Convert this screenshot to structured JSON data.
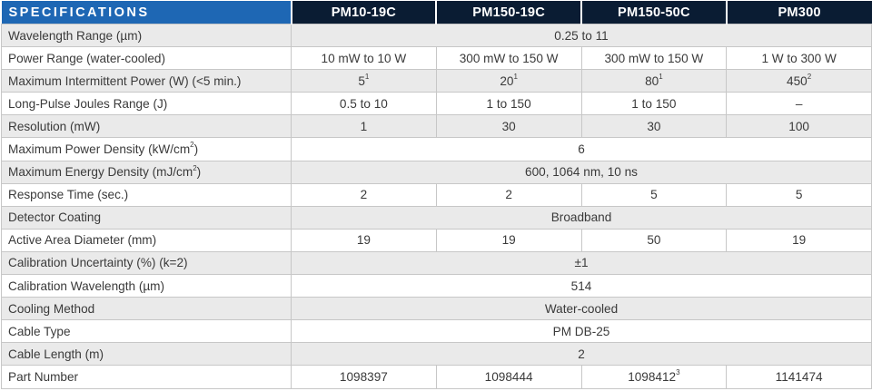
{
  "header": {
    "title": "SPECIFICATIONS",
    "models": [
      "PM10-19C",
      "PM150-19C",
      "PM150-50C",
      "PM300"
    ]
  },
  "rows": [
    {
      "label": "Wavelength Range (µm)",
      "span_value": "0.25 to 11"
    },
    {
      "label": "Power Range (water-cooled)",
      "values": [
        "10 mW to 10 W",
        "300 mW to 150 W",
        "300 mW to 150 W",
        "1 W to 300 W"
      ]
    },
    {
      "label": "Maximum Intermittent Power (W) (<5 min.)",
      "values": [
        "5",
        "20",
        "80",
        "450"
      ],
      "notes": [
        "1",
        "1",
        "1",
        "2"
      ]
    },
    {
      "label": "Long-Pulse Joules Range (J)",
      "values": [
        "0.5 to 10",
        "1 to 150",
        "1 to 150",
        "–"
      ]
    },
    {
      "label": "Resolution (mW)",
      "values": [
        "1",
        "30",
        "30",
        "100"
      ]
    },
    {
      "label": "Maximum Power Density (kW/cm",
      "label_sup": "2",
      "label_end": ")",
      "span_value": "6"
    },
    {
      "label": "Maximum Energy Density (mJ/cm",
      "label_sup": "2",
      "label_end": ")",
      "span_value": "600, 1064 nm, 10 ns"
    },
    {
      "label": "Response Time (sec.)",
      "values": [
        "2",
        "2",
        "5",
        "5"
      ]
    },
    {
      "label": "Detector Coating",
      "span_value": "Broadband"
    },
    {
      "label": "Active Area Diameter (mm)",
      "values": [
        "19",
        "19",
        "50",
        "19"
      ]
    },
    {
      "label": "Calibration Uncertainty (%) (k=2)",
      "span_value": "±1"
    },
    {
      "label": "Calibration Wavelength (µm)",
      "span_value": "514"
    },
    {
      "label": "Cooling Method",
      "span_value": "Water-cooled"
    },
    {
      "label": "Cable Type",
      "span_value": "PM DB-25"
    },
    {
      "label": "Cable Length (m)",
      "span_value": "2"
    },
    {
      "label": "Part Number",
      "values": [
        "1098397",
        "1098444",
        "1098412",
        "1141474"
      ],
      "notes": [
        "",
        "",
        "3",
        ""
      ]
    }
  ]
}
